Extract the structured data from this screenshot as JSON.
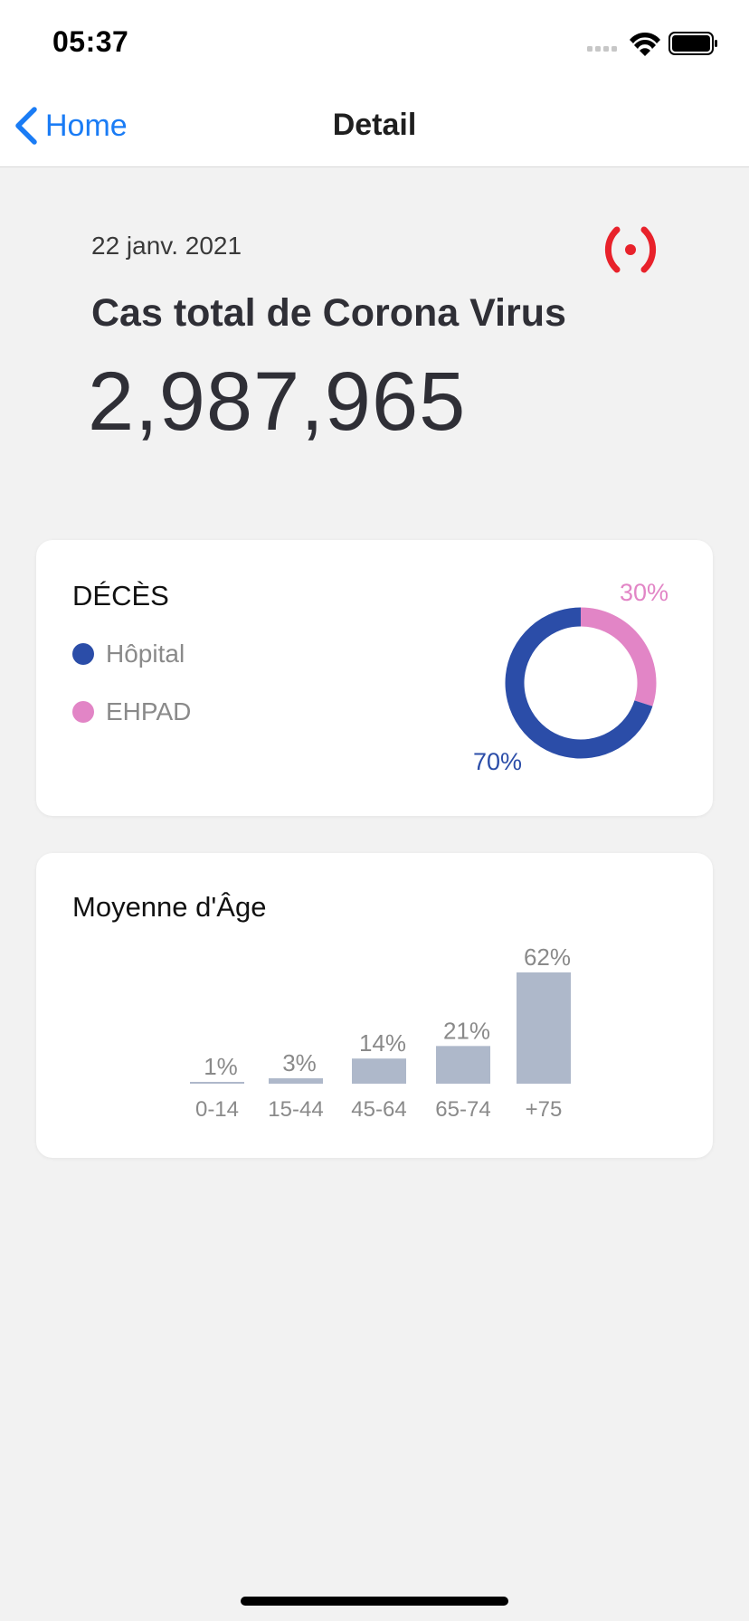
{
  "status_bar": {
    "time": "05:37"
  },
  "nav": {
    "back_label": "Home",
    "title": "Detail"
  },
  "summary": {
    "date": "22 janv. 2021",
    "title": "Cas total de Corona Virus",
    "total": "2,987,965"
  },
  "colors": {
    "hospital": "#2b4da8",
    "ehpad": "#e285c6",
    "bars": "#aeb8ca",
    "accent_blue": "#1a7cf5",
    "live_red": "#e8222b"
  },
  "deaths_card": {
    "title": "DÉCÈS",
    "legend": [
      {
        "label": "Hôpital"
      },
      {
        "label": "EHPAD"
      }
    ],
    "pct_hospital": "70%",
    "pct_ehpad": "30%"
  },
  "age_card": {
    "title": "Moyenne d'Âge"
  },
  "chart_data": [
    {
      "type": "pie",
      "title": "DÉCÈS",
      "categories": [
        "Hôpital",
        "EHPAD"
      ],
      "values": [
        70,
        30
      ],
      "legend": "left"
    },
    {
      "type": "bar",
      "title": "Moyenne d'Âge",
      "categories": [
        "0-14",
        "15-44",
        "45-64",
        "65-74",
        "+75"
      ],
      "values": [
        1,
        3,
        14,
        21,
        62
      ],
      "labels": [
        "1%",
        "3%",
        "14%",
        "21%",
        "62%"
      ],
      "ylim": [
        0,
        62
      ],
      "grid": false
    }
  ]
}
